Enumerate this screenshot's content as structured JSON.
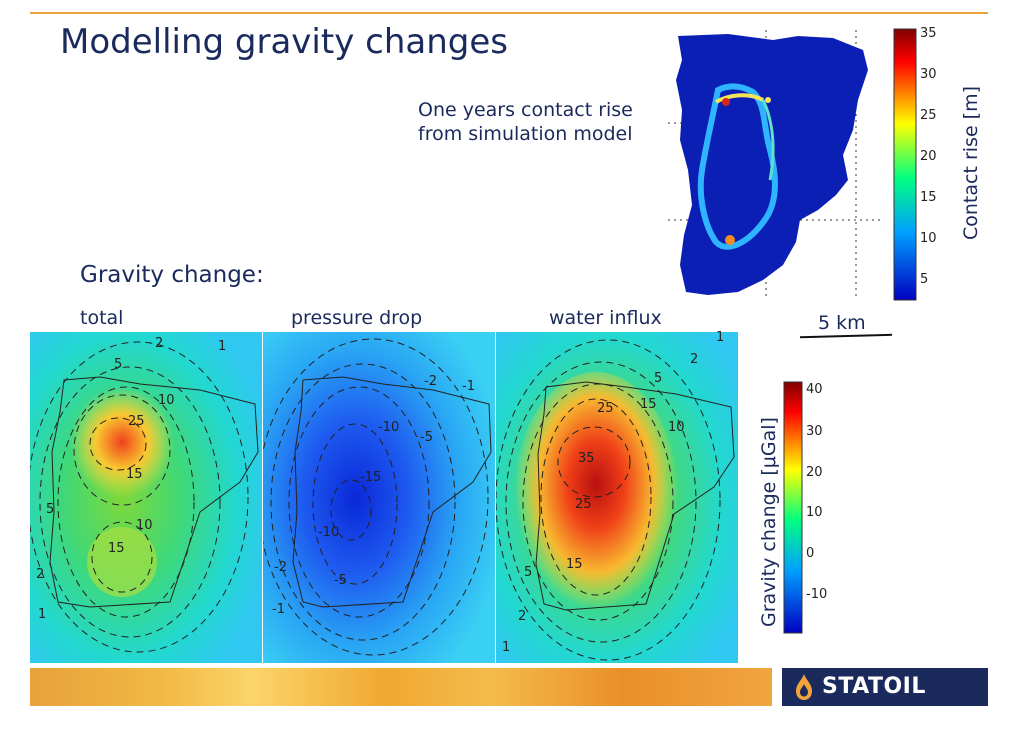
{
  "slide": {
    "title": "Modelling gravity changes",
    "contact_caption_line1": "One years contact rise",
    "contact_caption_line2": "from simulation model",
    "gravity_heading": "Gravity change:",
    "scale_bar_label": "5 km"
  },
  "panels": [
    {
      "label": "total",
      "contour_labels": [
        "2",
        "1",
        "5",
        "10",
        "25",
        "15",
        "5",
        "10",
        "15",
        "2",
        "1"
      ]
    },
    {
      "label": "pressure drop",
      "contour_labels": [
        "-2",
        "-1",
        "-10",
        "-5",
        "-15",
        "-10",
        "-2",
        "-5",
        "-1"
      ]
    },
    {
      "label": "water influx",
      "contour_labels": [
        "1",
        "2",
        "5",
        "25",
        "15",
        "10",
        "35",
        "25",
        "15",
        "5",
        "2",
        "1"
      ]
    }
  ],
  "contact_colorbar": {
    "title": "Contact rise [m]",
    "ticks": [
      "35",
      "30",
      "25",
      "20",
      "15",
      "10",
      "5"
    ]
  },
  "gravity_colorbar": {
    "title": "Gravity change [μGal]",
    "ticks": [
      "40",
      "30",
      "20",
      "10",
      "0",
      "-10"
    ]
  },
  "footer": {
    "logo_text": "STATOIL"
  },
  "colors": {
    "navy": "#1a2a5c",
    "orange": "#e8a13b",
    "accent_line": "#e8a13b"
  },
  "icons": {
    "logo": "flame-drop-icon"
  }
}
